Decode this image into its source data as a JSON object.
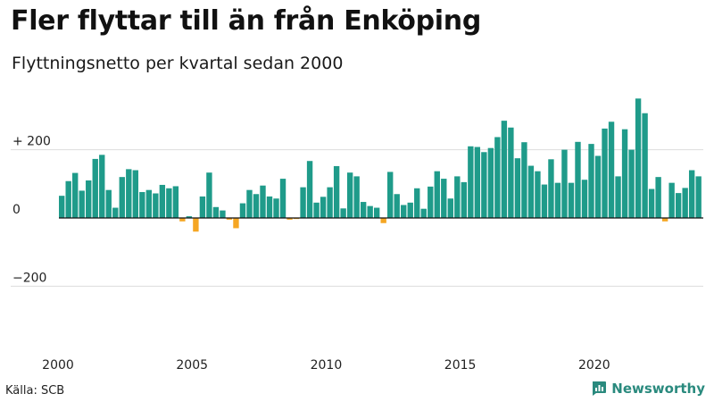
{
  "header": {
    "title": "Fler flyttar till än från Enköping",
    "subtitle": "Flyttningsnetto per kvartal sedan 2000"
  },
  "footer": {
    "source": "Källa: SCB",
    "brand": "Newsworthy"
  },
  "colors": {
    "positive": "#1f9b8a",
    "negative": "#f5a623",
    "grid": "#dddddd",
    "zero_line": "#111111",
    "brand": "#2a8a7e"
  },
  "chart_data": {
    "type": "bar",
    "x_start": {
      "year": 2000,
      "quarter": 1
    },
    "x_tick_labels": [
      "2000",
      "2005",
      "2010",
      "2015",
      "2020"
    ],
    "y_tick_labels": [
      "+ 200",
      "0",
      "−200"
    ],
    "y_ticks": [
      200,
      0,
      -200
    ],
    "ylim": [
      -370,
      355
    ],
    "grid": true,
    "values": [
      65,
      108,
      132,
      80,
      110,
      173,
      185,
      82,
      30,
      120,
      143,
      140,
      76,
      82,
      72,
      97,
      87,
      93,
      -10,
      5,
      -40,
      63,
      133,
      32,
      22,
      -5,
      -30,
      43,
      82,
      70,
      95,
      63,
      57,
      115,
      -5,
      -3,
      90,
      167,
      45,
      62,
      90,
      152,
      28,
      133,
      122,
      47,
      35,
      30,
      -15,
      135,
      70,
      38,
      45,
      87,
      27,
      92,
      137,
      115,
      57,
      122,
      105,
      210,
      208,
      193,
      205,
      237,
      285,
      265,
      175,
      222,
      153,
      137,
      98,
      172,
      103,
      200,
      103,
      223,
      112,
      217,
      182,
      262,
      282,
      122,
      260,
      200,
      350,
      307,
      85,
      120,
      -10,
      103,
      73,
      88,
      140,
      122
    ]
  }
}
